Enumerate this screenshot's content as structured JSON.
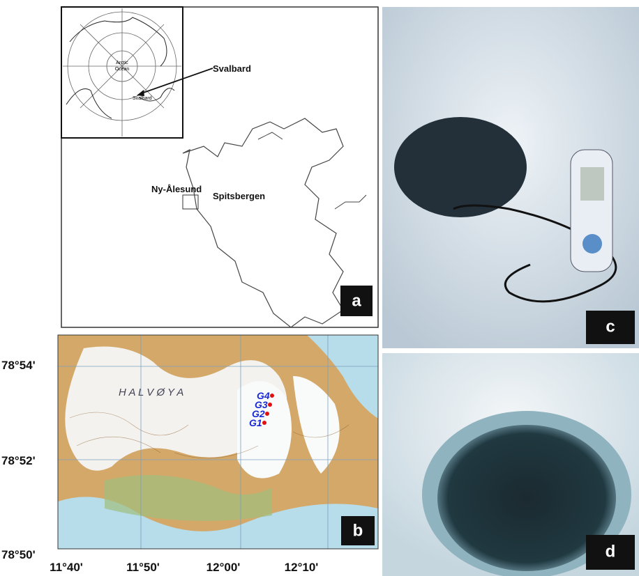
{
  "panel_a": {
    "label": "a",
    "inset_ocean": [
      "Arctic",
      "Ocean"
    ],
    "inset_svalbard": "Svalbard",
    "callout": "Svalbard",
    "station": "Ny-Ålesund",
    "island": "Spitsbergen"
  },
  "panel_b": {
    "label": "b",
    "region": "H A L V Ø Y A",
    "sites": [
      "G4",
      "G3",
      "G2",
      "G1"
    ],
    "latitudes": [
      "78°54'",
      "78°52'",
      "78°50'"
    ],
    "longitudes": [
      "11°40'",
      "11°50'",
      "12°00'",
      "12°10'"
    ]
  },
  "panel_c": {
    "label": "c"
  },
  "panel_d": {
    "label": "d"
  }
}
